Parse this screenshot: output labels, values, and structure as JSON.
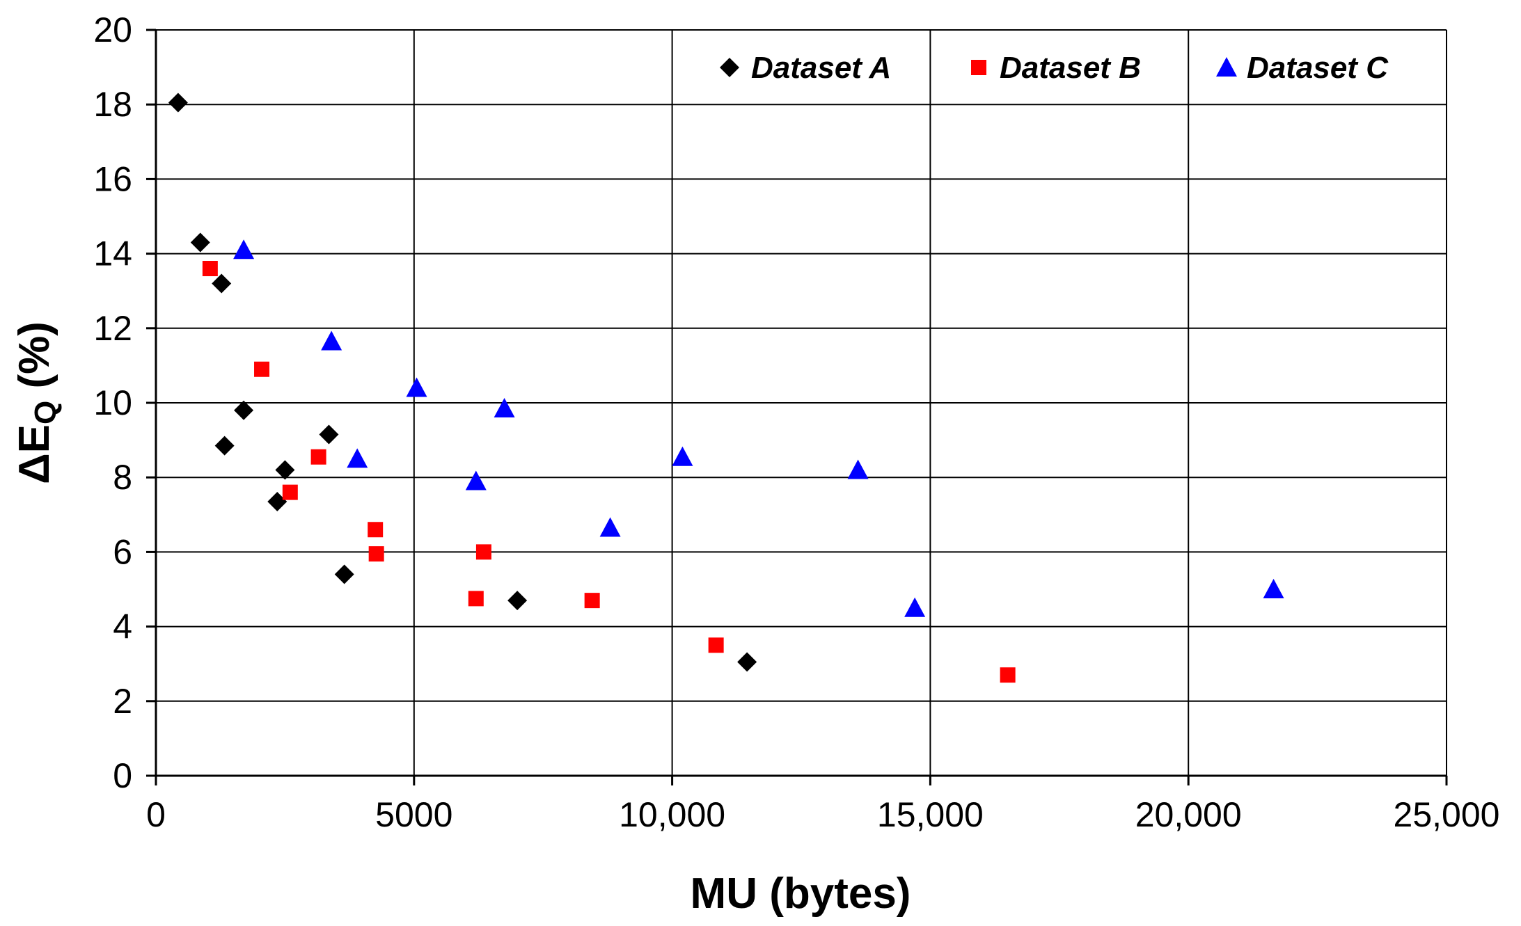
{
  "chart_data": {
    "type": "scatter",
    "xlabel": "MU (bytes)",
    "ylabel": {
      "prefix": "ΔE",
      "subscript": "Q",
      "suffix": " (%)"
    },
    "xlim": [
      0,
      25000
    ],
    "ylim": [
      0,
      20
    ],
    "x_ticks": [
      0,
      5000,
      10000,
      15000,
      20000,
      25000
    ],
    "x_tick_labels": [
      "0",
      "5000",
      "10,000",
      "15,000",
      "20,000",
      "25,000"
    ],
    "y_ticks": [
      0,
      2,
      4,
      6,
      8,
      10,
      12,
      14,
      16,
      18,
      20
    ],
    "y_tick_labels": [
      "0",
      "2",
      "4",
      "6",
      "8",
      "10",
      "12",
      "14",
      "16",
      "18",
      "20"
    ],
    "grid": "major gridlines on both axes",
    "legend_position": "top-right",
    "series": [
      {
        "name": "Dataset A",
        "marker": "diamond",
        "color": "#000000",
        "points": [
          [
            430,
            18.05
          ],
          [
            860,
            14.3
          ],
          [
            1270,
            13.2
          ],
          [
            1330,
            8.85
          ],
          [
            1700,
            9.8
          ],
          [
            2350,
            7.35
          ],
          [
            2500,
            8.2
          ],
          [
            3350,
            9.15
          ],
          [
            3650,
            5.4
          ],
          [
            7000,
            4.7
          ],
          [
            11450,
            3.05
          ]
        ]
      },
      {
        "name": "Dataset B",
        "marker": "square",
        "color": "#ff0000",
        "points": [
          [
            1050,
            13.6
          ],
          [
            2050,
            10.9
          ],
          [
            2600,
            7.6
          ],
          [
            3150,
            8.55
          ],
          [
            4250,
            6.6
          ],
          [
            4270,
            5.95
          ],
          [
            6200,
            4.75
          ],
          [
            6350,
            6.0
          ],
          [
            8450,
            4.7
          ],
          [
            10850,
            3.5
          ],
          [
            16500,
            2.7
          ]
        ]
      },
      {
        "name": "Dataset C",
        "marker": "triangle",
        "color": "#0000ff",
        "points": [
          [
            1700,
            14.1
          ],
          [
            3400,
            11.65
          ],
          [
            3900,
            8.5
          ],
          [
            5050,
            10.4
          ],
          [
            6200,
            7.9
          ],
          [
            6750,
            9.85
          ],
          [
            8800,
            6.65
          ],
          [
            10200,
            8.55
          ],
          [
            13600,
            8.2
          ],
          [
            14700,
            4.5
          ],
          [
            21650,
            5.0
          ]
        ]
      }
    ]
  }
}
